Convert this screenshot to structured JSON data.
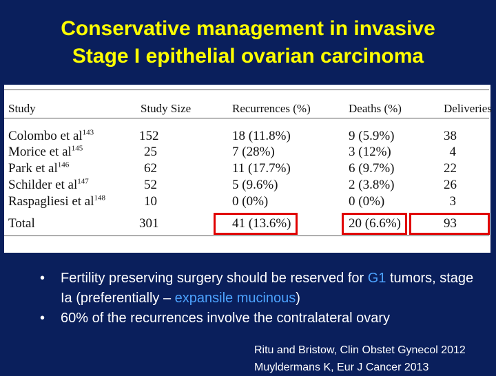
{
  "title": {
    "line1": "Conservative management in invasive",
    "line2": "Stage I epithelial ovarian carcinoma"
  },
  "table": {
    "headers": [
      "Study",
      "Study Size",
      "Recurrences (%)",
      "Deaths (%)",
      "Deliveries"
    ],
    "rows": [
      {
        "study": "Colombo et al",
        "ref": "143",
        "size": "152",
        "recurrences": "18 (11.8%)",
        "deaths": "9 (5.9%)",
        "deliveries": "38"
      },
      {
        "study": "Morice et al",
        "ref": "145",
        "size": "25",
        "recurrences": "7 (28%)",
        "deaths": "3 (12%)",
        "deliveries": "4"
      },
      {
        "study": "Park et al",
        "ref": "146",
        "size": "62",
        "recurrences": "11 (17.7%)",
        "deaths": "6 (9.7%)",
        "deliveries": "22"
      },
      {
        "study": "Schilder et al",
        "ref": "147",
        "size": "52",
        "recurrences": "5 (9.6%)",
        "deaths": "2 (3.8%)",
        "deliveries": "26"
      },
      {
        "study": "Raspagliesi et al",
        "ref": "148",
        "size": "10",
        "recurrences": "0 (0%)",
        "deaths": "0 (0%)",
        "deliveries": "3"
      },
      {
        "study": "Total",
        "ref": "",
        "size": "301",
        "recurrences": "41 (13.6%)",
        "deaths": "20 (6.6%)",
        "deliveries": "93"
      }
    ]
  },
  "bullets": {
    "b1_pre": "Fertility preserving surgery should be reserved for ",
    "b1_hl1": "G1",
    "b1_mid": " tumors, stage Ia (preferentially – ",
    "b1_hl2": "expansile mucinous",
    "b1_post": ")",
    "b2": "60% of the recurrences involve the contralateral ovary",
    "bullet_char": "•"
  },
  "references": {
    "ref1": "Ritu and Bristow, Clin Obstet Gynecol 2012",
    "ref2": "Muyldermans K, Eur J Cancer 2013"
  }
}
